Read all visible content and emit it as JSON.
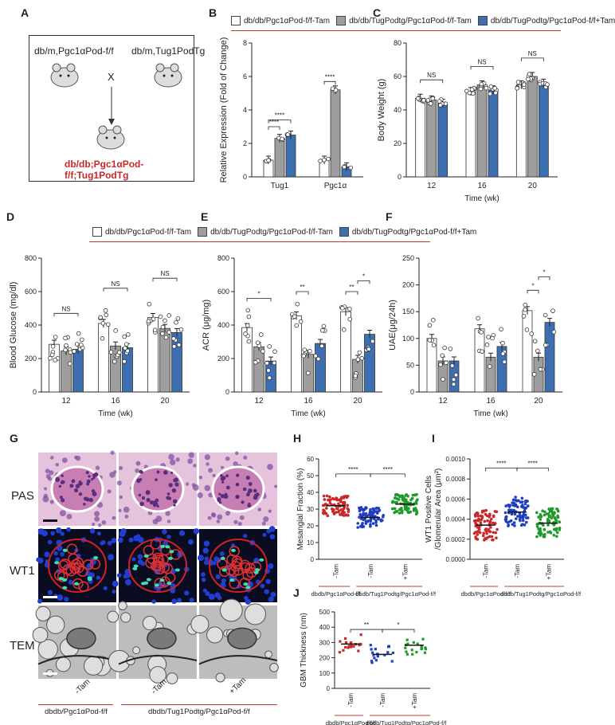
{
  "panels": {
    "A": "A",
    "B": "B",
    "C": "C",
    "D": "D",
    "E": "E",
    "F": "F",
    "G": "G",
    "H": "H",
    "I": "I",
    "J": "J"
  },
  "colors": {
    "white": "#ffffff",
    "gray": "#9e9e9e",
    "blue": "#3d6fb0",
    "red": "#c8282a",
    "blue_dot": "#1f3fbf",
    "green": "#1f9a2a",
    "line": "#c0392b"
  },
  "legend_top": [
    {
      "label": "db/db/Pgc1αPod-f/f-Tam",
      "color": "#ffffff"
    },
    {
      "label": "db/db/TugPodtg/Pgc1αPod-f/f-Tam",
      "color": "#9e9e9e"
    },
    {
      "label": "db/db/TugPodtg/Pgc1αPod-f/f+Tam",
      "color": "#3d6fb0"
    }
  ],
  "legend_mid": [
    {
      "label": "db/db/Pgc1αPod-f/f-Tam",
      "color": "#ffffff"
    },
    {
      "label": "db/db/TugPodtg/Pgc1αPod-f/f-Tam",
      "color": "#9e9e9e"
    },
    {
      "label": "db/db/TugPodtg/Pgc1αPod-f/f+Tam",
      "color": "#3d6fb0"
    }
  ],
  "schematic": {
    "parent1": "db/m,Pgc1αPod-f/f",
    "parent2": "db/m,Tug1PodTg",
    "cross": "X",
    "offspring": "db/db;Pgc1αPod-f/f;Tug1PodTg"
  },
  "imaging": {
    "rows": [
      "PAS",
      "WT1",
      "TEM"
    ],
    "cols": [
      "-Tam",
      "-Tam",
      "+Tam"
    ],
    "group1": "dbdb/Pgc1αPod-f/f",
    "group2": "dbdb/Tug1Podtg/Pgc1αPod-f/f"
  },
  "chart_data": [
    {
      "panel": "B",
      "type": "bar",
      "ylabel": "Relative Expression (Fold of Change)",
      "categories": [
        "Tug1",
        "Pgc1α"
      ],
      "ylim": [
        0,
        8
      ],
      "yticks": [
        0,
        2,
        4,
        6,
        8
      ],
      "series": [
        {
          "name": "db/db/Pgc1αPod-f/f-Tam",
          "values": [
            1.0,
            1.0
          ]
        },
        {
          "name": "db/db/TugPodtg/Pgc1αPod-f/f-Tam",
          "values": [
            2.3,
            5.2
          ]
        },
        {
          "name": "db/db/TugPodtg/Pgc1αPod-f/f+Tam",
          "values": [
            2.5,
            0.6
          ]
        }
      ],
      "significance": [
        "****",
        "****",
        "****"
      ]
    },
    {
      "panel": "C",
      "type": "bar",
      "ylabel": "Body Weight (g)",
      "xlabel": "Time (wk)",
      "categories": [
        "12",
        "16",
        "20"
      ],
      "ylim": [
        0,
        80
      ],
      "yticks": [
        0,
        20,
        40,
        60,
        80
      ],
      "series": [
        {
          "name": "db/db/Pgc1αPod-f/f-Tam",
          "values": [
            47,
            51,
            55
          ]
        },
        {
          "name": "db/db/TugPodtg/Pgc1αPod-f/f-Tam",
          "values": [
            46,
            55,
            60
          ]
        },
        {
          "name": "db/db/TugPodtg/Pgc1αPod-f/f+Tam",
          "values": [
            44,
            52,
            56
          ]
        }
      ],
      "significance": [
        "NS",
        "NS",
        "NS"
      ]
    },
    {
      "panel": "D",
      "type": "bar",
      "ylabel": "Blood Glucose (mg/dl)",
      "xlabel": "Time (wk)",
      "categories": [
        "12",
        "16",
        "20"
      ],
      "ylim": [
        0,
        800
      ],
      "yticks": [
        0,
        200,
        400,
        600,
        800
      ],
      "series": [
        {
          "name": "db/db/Pgc1αPod-f/f-Tam",
          "values": [
            285,
            410,
            445
          ]
        },
        {
          "name": "db/db/TugPodtg/Pgc1αPod-f/f-Tam",
          "values": [
            245,
            275,
            380
          ]
        },
        {
          "name": "db/db/TugPodtg/Pgc1αPod-f/f+Tam",
          "values": [
            255,
            265,
            355
          ]
        }
      ],
      "significance": [
        "NS",
        "NS",
        "NS"
      ]
    },
    {
      "panel": "E",
      "type": "bar",
      "ylabel": "ACR (μg/mg)",
      "xlabel": "Time (wk)",
      "categories": [
        "12",
        "16",
        "20"
      ],
      "ylim": [
        0,
        800
      ],
      "yticks": [
        0,
        200,
        400,
        600,
        800
      ],
      "series": [
        {
          "name": "db/db/Pgc1αPod-f/f-Tam",
          "values": [
            385,
            455,
            480
          ]
        },
        {
          "name": "db/db/TugPodtg/Pgc1αPod-f/f-Tam",
          "values": [
            270,
            225,
            195
          ]
        },
        {
          "name": "db/db/TugPodtg/Pgc1αPod-f/f+Tam",
          "values": [
            185,
            290,
            345
          ]
        }
      ],
      "significance": [
        "*",
        "**",
        "**",
        "*"
      ]
    },
    {
      "panel": "F",
      "type": "bar",
      "ylabel": "UAE(μg/24h)",
      "xlabel": "Time (wk)",
      "categories": [
        "12",
        "16",
        "20"
      ],
      "ylim": [
        0,
        250
      ],
      "yticks": [
        0,
        50,
        100,
        150,
        200,
        250
      ],
      "series": [
        {
          "name": "db/db/Pgc1αPod-f/f-Tam",
          "values": [
            100,
            118,
            152
          ]
        },
        {
          "name": "db/db/TugPodtg/Pgc1αPod-f/f-Tam",
          "values": [
            58,
            65,
            65
          ]
        },
        {
          "name": "db/db/TugPodtg/Pgc1αPod-f/f+Tam",
          "values": [
            58,
            85,
            130
          ]
        }
      ],
      "significance": [
        "*",
        "*"
      ]
    },
    {
      "panel": "H",
      "type": "scatter",
      "ylabel": "Mesangial Fraction (%)",
      "ylim": [
        0,
        60
      ],
      "yticks": [
        0,
        10,
        20,
        30,
        40,
        50,
        60
      ],
      "categories": [
        "-Tam",
        "-Tam",
        "+Tam"
      ],
      "means": [
        32,
        25,
        33
      ],
      "significance": [
        "****",
        "****"
      ]
    },
    {
      "panel": "I",
      "type": "scatter",
      "ylabel": "WT1 Positive Cells /Glomerular Area (μm²)",
      "ylim": [
        0,
        0.001
      ],
      "yticks": [
        "0.0000",
        "0.0002",
        "0.0004",
        "0.0006",
        "0.0008",
        "0.0010"
      ],
      "categories": [
        "-Tam",
        "-Tam",
        "+Tam"
      ],
      "means": [
        0.00034,
        0.00047,
        0.00036
      ],
      "significance": [
        "****",
        "****"
      ]
    },
    {
      "panel": "J",
      "type": "scatter",
      "ylabel": "GBM Thickness (nm)",
      "ylim": [
        0,
        500
      ],
      "yticks": [
        0,
        100,
        200,
        300,
        400,
        500
      ],
      "categories": [
        "-Tam",
        "-Tam",
        "+Tam"
      ],
      "means": [
        290,
        222,
        282
      ],
      "significance": [
        "**",
        "*"
      ]
    }
  ]
}
